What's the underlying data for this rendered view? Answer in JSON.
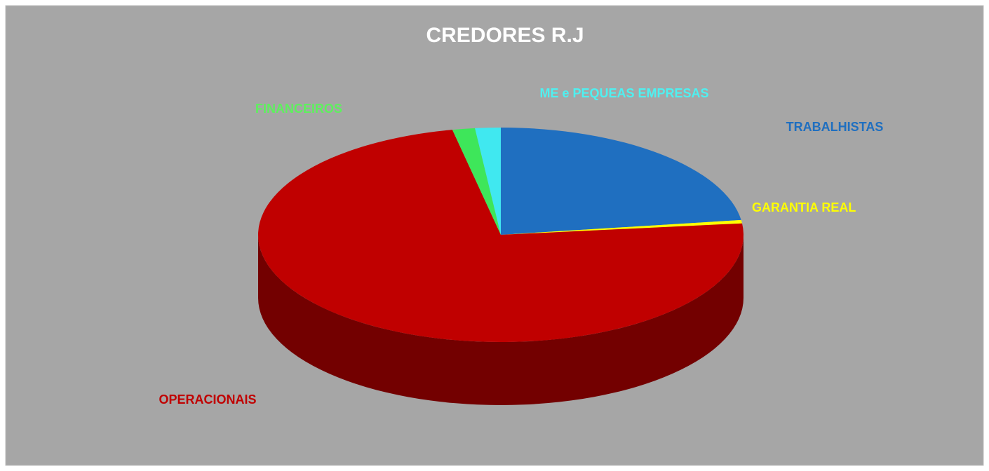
{
  "chart_data": {
    "type": "pie3d",
    "title": "CREDORES R.J",
    "categories": [
      "TRABALHISTAS",
      "GARANTIA REAL",
      "OPERACIONAIS",
      "FINANCEIROS",
      "ME e PEQUEAS EMPRESAS"
    ],
    "values": [
      22.8,
      0.5,
      73.5,
      1.5,
      1.7
    ],
    "colors": [
      "#1f6fc0",
      "#ffff00",
      "#c00000",
      "#3ee65a",
      "#40e8f0"
    ],
    "label_colors": [
      "#1f6fc0",
      "#ffff00",
      "#c00000",
      "#5ef05e",
      "#4ff0f0"
    ]
  }
}
